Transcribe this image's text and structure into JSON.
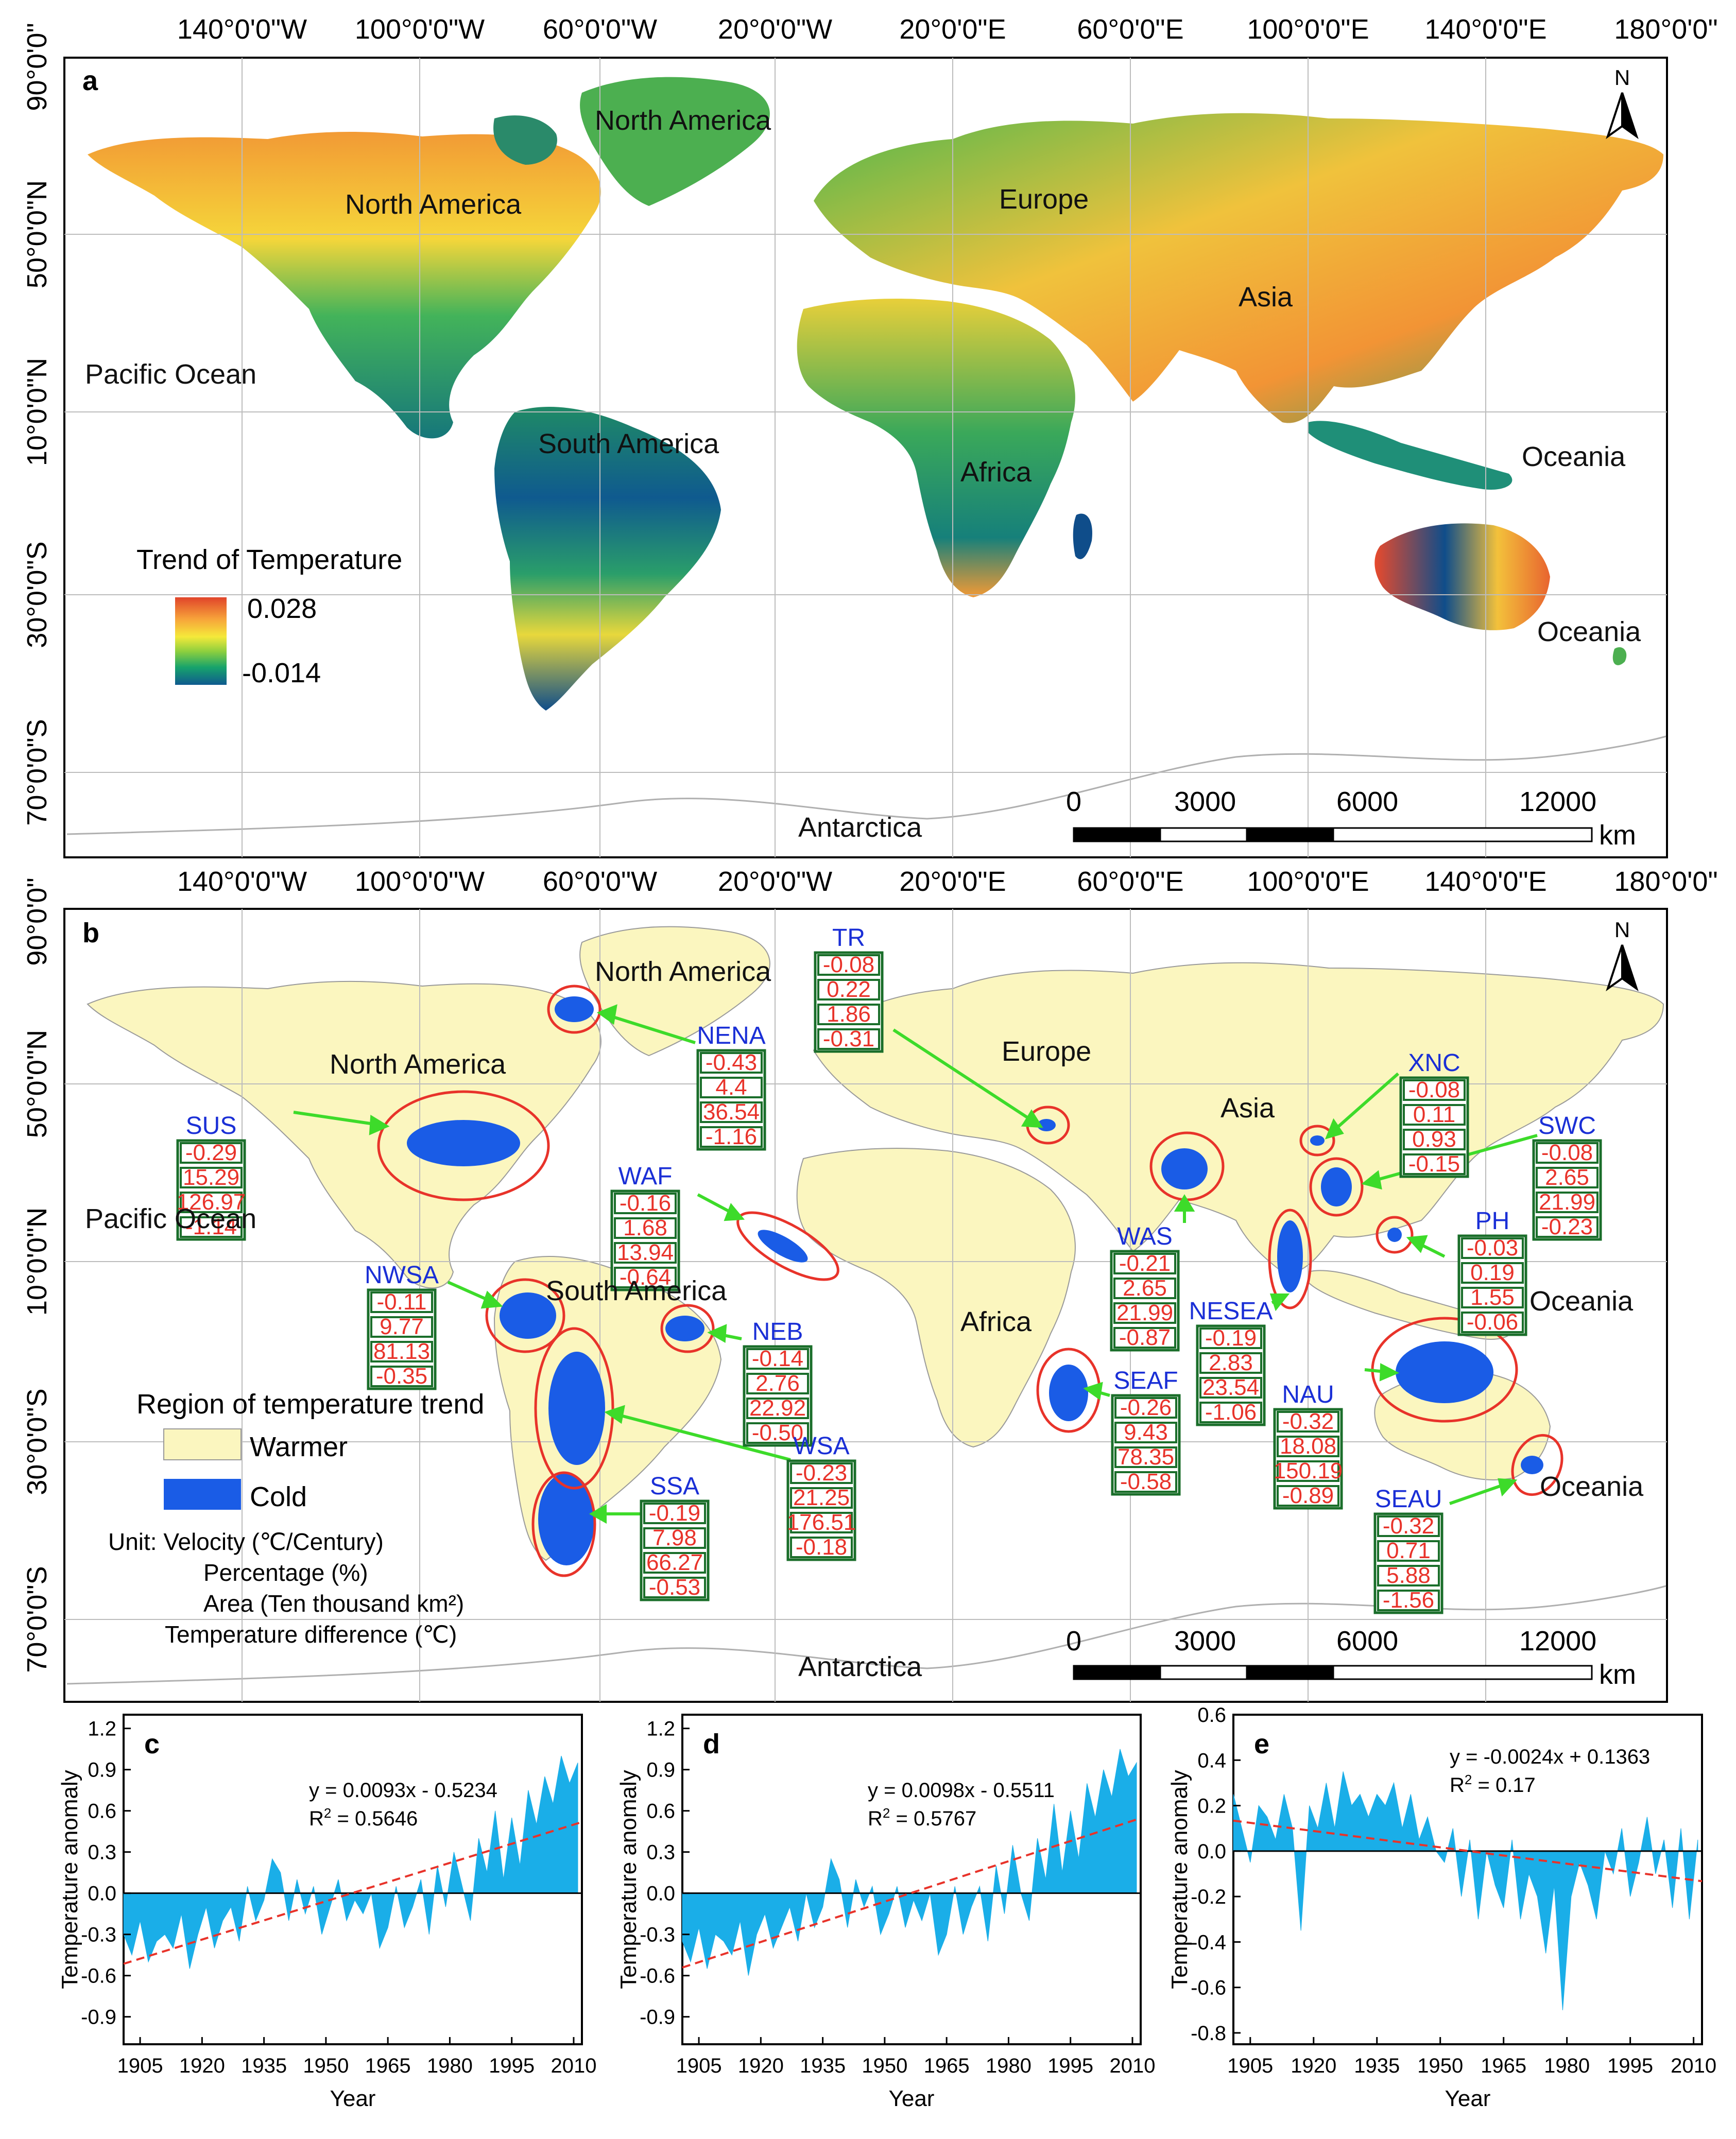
{
  "map_a": {
    "panel_letter": "a",
    "lon_labels_top": [
      "140°0'0\"W",
      "100°0'0\"W",
      "60°0'0\"W",
      "20°0'0\"W",
      "20°0'0\"E",
      "60°0'0\"E",
      "100°0'0\"E",
      "140°0'0\"E",
      "180°0'0\""
    ],
    "lat_labels": [
      "90°0'0\"",
      "50°0'0\"N",
      "10°0'0\"N",
      "30°0'0\"S",
      "70°0'0\"S"
    ],
    "places": [
      {
        "key": "north-america-greenland",
        "text": "North America"
      },
      {
        "key": "north-america",
        "text": "North America"
      },
      {
        "key": "europe",
        "text": "Europe"
      },
      {
        "key": "asia",
        "text": "Asia"
      },
      {
        "key": "pacific-ocean",
        "text": "Pacific Ocean"
      },
      {
        "key": "south-america",
        "text": "South America"
      },
      {
        "key": "africa",
        "text": "Africa"
      },
      {
        "key": "oceania-1",
        "text": "Oceania"
      },
      {
        "key": "oceania-2",
        "text": "Oceania"
      },
      {
        "key": "antarctica",
        "text": "Antarctica"
      }
    ],
    "legend": {
      "title": "Trend of Temperature",
      "max": "0.028",
      "min": "-0.014",
      "colors": [
        "#e0442a",
        "#f7a43a",
        "#f5e93a",
        "#8ccf3e",
        "#17a36b",
        "#0f5a8f"
      ]
    },
    "scale": {
      "ticks": [
        "0",
        "3000",
        "6000",
        "12000"
      ],
      "unit": "km"
    },
    "north": "N"
  },
  "map_b": {
    "panel_letter": "b",
    "lon_labels_top": [
      "140°0'0\"W",
      "100°0'0\"W",
      "60°0'0\"W",
      "20°0'0\"W",
      "20°0'0\"E",
      "60°0'0\"E",
      "100°0'0\"E",
      "140°0'0\"E",
      "180°0'0\""
    ],
    "lat_labels": [
      "90°0'0\"",
      "50°0'0\"N",
      "10°0'0\"N",
      "30°0'0\"S",
      "70°0'0\"S"
    ],
    "places": [
      {
        "key": "north-america-greenland",
        "text": "North America"
      },
      {
        "key": "north-america",
        "text": "North America"
      },
      {
        "key": "europe",
        "text": "Europe"
      },
      {
        "key": "asia",
        "text": "Asia"
      },
      {
        "key": "pacific-ocean",
        "text": "Pacific Ocean"
      },
      {
        "key": "south-america",
        "text": "South America"
      },
      {
        "key": "africa",
        "text": "Africa"
      },
      {
        "key": "oceania-1",
        "text": "Oceania"
      },
      {
        "key": "oceania-2",
        "text": "Oceania"
      },
      {
        "key": "antarctica",
        "text": "Antarctica"
      }
    ],
    "legend": {
      "title": "Region of temperature trend",
      "items": [
        {
          "label": "Warmer",
          "color": "#fbf6bf"
        },
        {
          "label": "Cold",
          "color": "#1a5ce6"
        }
      ],
      "units": [
        "Unit: Velocity (℃/Century)",
        "Percentage (%)",
        "Area (Ten thousand km²)",
        "Temperature difference (℃)"
      ]
    },
    "scale": {
      "ticks": [
        "0",
        "3000",
        "6000",
        "12000"
      ],
      "unit": "km"
    },
    "north": "N",
    "regions": [
      {
        "name": "TR",
        "values": [
          "-0.08",
          "0.22",
          "1.86",
          "-0.31"
        ]
      },
      {
        "name": "NENA",
        "values": [
          "-0.43",
          "4.4",
          "36.54",
          "-1.16"
        ]
      },
      {
        "name": "SUS",
        "values": [
          "-0.29",
          "15.29",
          "126.97",
          "-1.14"
        ]
      },
      {
        "name": "XNC",
        "values": [
          "-0.08",
          "0.11",
          "0.93",
          "-0.15"
        ]
      },
      {
        "name": "SWC",
        "values": [
          "-0.08",
          "2.65",
          "21.99",
          "-0.23"
        ]
      },
      {
        "name": "WAF",
        "values": [
          "-0.16",
          "1.68",
          "13.94",
          "-0.64"
        ]
      },
      {
        "name": "PH",
        "values": [
          "-0.03",
          "0.19",
          "1.55",
          "-0.06"
        ]
      },
      {
        "name": "WAS",
        "values": [
          "-0.21",
          "2.65",
          "21.99",
          "-0.87"
        ]
      },
      {
        "name": "NWSA",
        "values": [
          "-0.11",
          "9.77",
          "81.13",
          "-0.35"
        ]
      },
      {
        "name": "NESEA",
        "values": [
          "-0.19",
          "2.83",
          "23.54",
          "-1.06"
        ]
      },
      {
        "name": "NEB",
        "values": [
          "-0.14",
          "2.76",
          "22.92",
          "-0.50"
        ]
      },
      {
        "name": "SEAF",
        "values": [
          "-0.26",
          "9.43",
          "78.35",
          "-0.58"
        ]
      },
      {
        "name": "NAU",
        "values": [
          "-0.32",
          "18.08",
          "150.19",
          "-0.89"
        ]
      },
      {
        "name": "WSA",
        "values": [
          "-0.23",
          "21.25",
          "176.51",
          "-0.18"
        ]
      },
      {
        "name": "SSA",
        "values": [
          "-0.19",
          "7.98",
          "66.27",
          "-0.53"
        ]
      },
      {
        "name": "SEAU",
        "values": [
          "-0.32",
          "0.71",
          "5.88",
          "-1.56"
        ]
      }
    ]
  },
  "chart_data": [
    {
      "type": "area",
      "panel": "c",
      "xlabel": "Year",
      "ylabel": "Temperature anomaly",
      "xticks": [
        "1905",
        "1920",
        "1935",
        "1950",
        "1965",
        "1980",
        "1995",
        "2010"
      ],
      "yticks": [
        "1.2",
        "0.9",
        "0.6",
        "0.3",
        "0.0",
        "-0.3",
        "-0.6",
        "-0.9"
      ],
      "xlim": [
        1901,
        2012
      ],
      "ylim": [
        -1.1,
        1.3
      ],
      "trend": {
        "slope": 0.0093,
        "intercept": -0.5234,
        "start": 1901
      },
      "equation": "y = 0.0093x - 0.5234",
      "r2_label": "R",
      "r2_value": " = 0.5646",
      "fill": "#1aaee8",
      "x": [
        1901,
        1903,
        1905,
        1907,
        1909,
        1911,
        1913,
        1915,
        1917,
        1919,
        1921,
        1923,
        1925,
        1927,
        1929,
        1931,
        1933,
        1935,
        1937,
        1939,
        1941,
        1943,
        1945,
        1947,
        1949,
        1951,
        1953,
        1955,
        1957,
        1959,
        1961,
        1963,
        1965,
        1967,
        1969,
        1971,
        1973,
        1975,
        1977,
        1979,
        1981,
        1983,
        1985,
        1987,
        1989,
        1991,
        1993,
        1995,
        1997,
        1999,
        2001,
        2003,
        2005,
        2007,
        2009,
        2011
      ],
      "values": [
        -0.3,
        -0.45,
        -0.2,
        -0.5,
        -0.35,
        -0.3,
        -0.4,
        -0.15,
        -0.55,
        -0.3,
        -0.1,
        -0.4,
        -0.2,
        -0.1,
        -0.35,
        0.05,
        -0.2,
        -0.05,
        0.25,
        0.15,
        -0.2,
        0.1,
        -0.15,
        0.05,
        -0.3,
        -0.1,
        0.1,
        -0.2,
        -0.05,
        -0.15,
        0.0,
        -0.4,
        -0.25,
        0.05,
        -0.25,
        -0.1,
        0.1,
        -0.3,
        0.2,
        -0.1,
        0.3,
        0.05,
        -0.2,
        0.4,
        0.15,
        0.6,
        0.1,
        0.55,
        0.2,
        0.75,
        0.5,
        0.85,
        0.65,
        1.0,
        0.8,
        0.95
      ]
    },
    {
      "type": "area",
      "panel": "d",
      "xlabel": "Year",
      "ylabel": "Temperature anomaly",
      "xticks": [
        "1905",
        "1920",
        "1935",
        "1950",
        "1965",
        "1980",
        "1995",
        "2010"
      ],
      "yticks": [
        "1.2",
        "0.9",
        "0.6",
        "0.3",
        "0.0",
        "-0.3",
        "-0.6",
        "-0.9"
      ],
      "xlim": [
        1901,
        2012
      ],
      "ylim": [
        -1.1,
        1.3
      ],
      "trend": {
        "slope": 0.0098,
        "intercept": -0.5511,
        "start": 1901
      },
      "equation": "y = 0.0098x - 0.5511",
      "r2_label": "R",
      "r2_value": " = 0.5767",
      "fill": "#1aaee8",
      "x": [
        1901,
        1903,
        1905,
        1907,
        1909,
        1911,
        1913,
        1915,
        1917,
        1919,
        1921,
        1923,
        1925,
        1927,
        1929,
        1931,
        1933,
        1935,
        1937,
        1939,
        1941,
        1943,
        1945,
        1947,
        1949,
        1951,
        1953,
        1955,
        1957,
        1959,
        1961,
        1963,
        1965,
        1967,
        1969,
        1971,
        1973,
        1975,
        1977,
        1979,
        1981,
        1983,
        1985,
        1987,
        1989,
        1991,
        1993,
        1995,
        1997,
        1999,
        2001,
        2003,
        2005,
        2007,
        2009,
        2011
      ],
      "values": [
        -0.35,
        -0.5,
        -0.25,
        -0.55,
        -0.3,
        -0.35,
        -0.45,
        -0.2,
        -0.6,
        -0.3,
        -0.15,
        -0.4,
        -0.25,
        -0.1,
        -0.35,
        0.0,
        -0.25,
        -0.1,
        0.25,
        0.1,
        -0.25,
        0.1,
        -0.1,
        0.05,
        -0.3,
        -0.15,
        0.05,
        -0.25,
        -0.05,
        -0.2,
        0.0,
        -0.45,
        -0.3,
        0.05,
        -0.3,
        -0.1,
        0.05,
        -0.35,
        0.2,
        -0.15,
        0.35,
        0.0,
        -0.2,
        0.4,
        0.1,
        0.65,
        0.15,
        0.6,
        0.25,
        0.8,
        0.55,
        0.9,
        0.7,
        1.05,
        0.85,
        0.95
      ]
    },
    {
      "type": "area",
      "panel": "e",
      "xlabel": "Year",
      "ylabel": "Temperature anomaly",
      "xticks": [
        "1905",
        "1920",
        "1935",
        "1950",
        "1965",
        "1980",
        "1995",
        "2010"
      ],
      "yticks": [
        "0.6",
        "0.4",
        "0.2",
        "0.0",
        "-0.2",
        "-0.4",
        "-0.6",
        "-0.8"
      ],
      "xlim": [
        1901,
        2012
      ],
      "ylim": [
        -0.85,
        0.6
      ],
      "trend": {
        "slope": -0.0024,
        "intercept": 0.1363,
        "start": 1901
      },
      "equation": "y = -0.0024x + 0.1363",
      "r2_label": "R",
      "r2_value": " = 0.17",
      "fill": "#1aaee8",
      "x": [
        1901,
        1903,
        1905,
        1907,
        1909,
        1911,
        1913,
        1915,
        1917,
        1919,
        1921,
        1923,
        1925,
        1927,
        1929,
        1931,
        1933,
        1935,
        1937,
        1939,
        1941,
        1943,
        1945,
        1947,
        1949,
        1951,
        1953,
        1955,
        1957,
        1959,
        1961,
        1963,
        1965,
        1967,
        1969,
        1971,
        1973,
        1975,
        1977,
        1979,
        1981,
        1983,
        1985,
        1987,
        1989,
        1991,
        1993,
        1995,
        1997,
        1999,
        2001,
        2003,
        2005,
        2007,
        2009,
        2011
      ],
      "values": [
        0.25,
        0.1,
        -0.05,
        0.2,
        0.15,
        0.05,
        0.25,
        0.1,
        -0.35,
        0.2,
        0.1,
        0.3,
        0.1,
        0.35,
        0.2,
        0.25,
        0.15,
        0.25,
        0.2,
        0.3,
        0.1,
        0.25,
        0.05,
        0.15,
        0.0,
        -0.05,
        0.1,
        -0.2,
        0.05,
        -0.3,
        0.0,
        -0.15,
        -0.25,
        0.05,
        -0.3,
        -0.1,
        -0.2,
        -0.45,
        -0.15,
        -0.7,
        -0.2,
        -0.05,
        -0.15,
        -0.3,
        0.0,
        -0.1,
        0.1,
        -0.2,
        -0.05,
        0.15,
        -0.1,
        0.05,
        -0.25,
        0.1,
        -0.3,
        0.05
      ]
    }
  ]
}
